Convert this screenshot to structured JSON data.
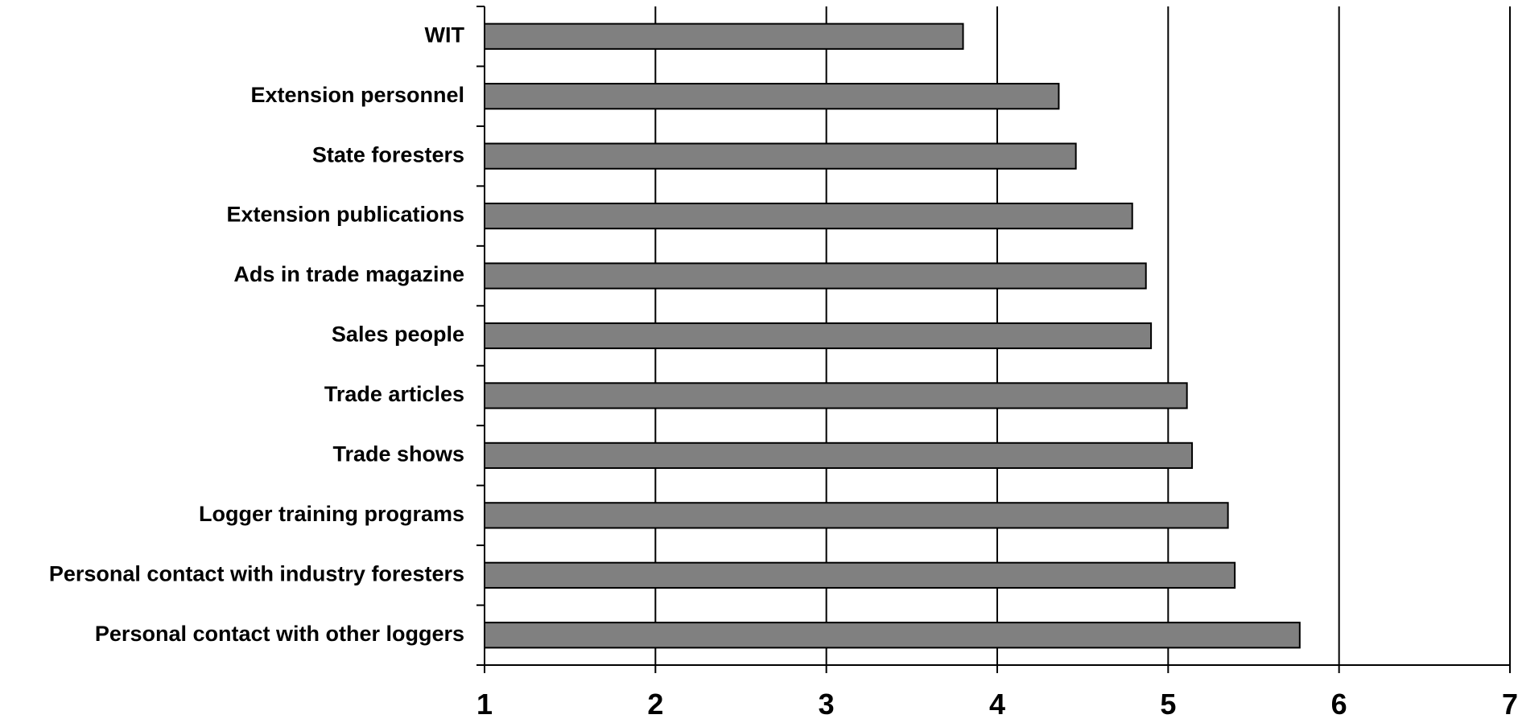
{
  "chart_data": {
    "type": "bar",
    "orientation": "horizontal",
    "categories": [
      "WIT",
      "Extension personnel",
      "State foresters",
      "Extension publications",
      "Ads in trade magazine",
      "Sales people",
      "Trade articles",
      "Trade shows",
      "Logger training programs",
      "Personal contact with industry foresters",
      "Personal contact with other loggers"
    ],
    "values": [
      3.8,
      4.36,
      4.46,
      4.79,
      4.87,
      4.9,
      5.11,
      5.14,
      5.35,
      5.39,
      5.77
    ],
    "xlim": [
      1,
      7
    ],
    "xticks": [
      "1",
      "2",
      "3",
      "4",
      "5",
      "6",
      "7"
    ],
    "title": "",
    "xlabel": "",
    "ylabel": "",
    "grid": "vertical",
    "legend": "none",
    "colors": {
      "bar_fill": "#808080",
      "bar_stroke": "#000000",
      "axis": "#000000"
    }
  }
}
